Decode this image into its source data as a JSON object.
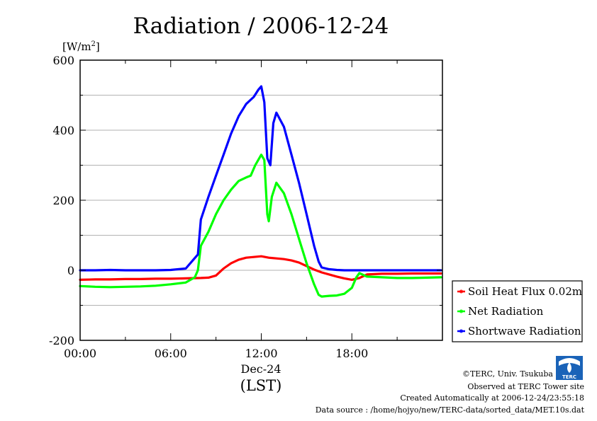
{
  "chart_data": {
    "type": "line",
    "title": "Radiation / 2006-12-24",
    "ylabel_unit": "[W/m",
    "ylabel_sup": "2",
    "ylabel_close": "]",
    "ylim": [
      -200,
      600
    ],
    "yticks": [
      -200,
      0,
      200,
      400,
      600
    ],
    "ytick_labels": [
      "-200",
      "0",
      "200",
      "400",
      "600"
    ],
    "xlim_hours": [
      0,
      24
    ],
    "xticks_hours": [
      0,
      6,
      12,
      18
    ],
    "xtick_labels": [
      "00:00",
      "06:00",
      "12:00",
      "18:00"
    ],
    "xdate_label": "Dec-24",
    "xlabel": "(LST)",
    "grid": "horizontal",
    "legend_position": "right",
    "series": [
      {
        "name": "Soil Heat Flux 0.02m",
        "color": "#ff0000",
        "x": [
          0,
          1,
          2,
          3,
          4,
          5,
          6,
          7,
          8,
          8.5,
          9,
          9.5,
          10,
          10.5,
          11,
          11.5,
          12,
          12.5,
          13,
          13.5,
          14,
          14.5,
          15,
          15.5,
          16,
          16.5,
          17,
          17.5,
          18,
          18.5,
          19,
          20,
          21,
          22,
          23,
          23.9
        ],
        "y": [
          -27,
          -26,
          -26,
          -25,
          -25,
          -24,
          -24,
          -23,
          -22,
          -21,
          -15,
          5,
          20,
          30,
          36,
          38,
          40,
          36,
          34,
          32,
          28,
          22,
          12,
          2,
          -6,
          -12,
          -18,
          -23,
          -27,
          -22,
          -12,
          -10,
          -10,
          -9,
          -9,
          -9
        ]
      },
      {
        "name": "Net Radiation",
        "color": "#00ff00",
        "x": [
          0,
          1,
          2,
          3,
          4,
          5,
          6,
          7,
          7.6,
          7.8,
          8,
          8.5,
          9,
          9.5,
          10,
          10.5,
          11,
          11.3,
          11.6,
          12,
          12.2,
          12.4,
          12.5,
          12.7,
          13,
          13.5,
          14,
          14.5,
          15,
          15.5,
          15.8,
          16,
          16.5,
          17,
          17.5,
          18,
          18.3,
          18.5,
          19,
          20,
          21,
          22,
          23,
          23.9
        ],
        "y": [
          -45,
          -47,
          -48,
          -47,
          -46,
          -44,
          -40,
          -35,
          -20,
          0,
          70,
          110,
          160,
          200,
          230,
          255,
          265,
          270,
          300,
          330,
          315,
          160,
          140,
          210,
          250,
          220,
          160,
          90,
          20,
          -40,
          -70,
          -75,
          -73,
          -72,
          -67,
          -50,
          -20,
          -8,
          -18,
          -20,
          -22,
          -22,
          -21,
          -20
        ]
      },
      {
        "name": "Shortwave Radiation",
        "color": "#0000ff",
        "x": [
          0,
          1,
          2,
          3,
          4,
          5,
          6,
          7,
          7.5,
          7.8,
          8,
          8.5,
          9,
          9.5,
          10,
          10.5,
          11,
          11.5,
          11.8,
          12,
          12.2,
          12.4,
          12.6,
          12.8,
          13,
          13.5,
          14,
          14.5,
          15,
          15.5,
          15.8,
          16,
          16.5,
          17,
          17.5,
          18,
          19,
          20,
          21,
          22,
          23,
          23.9
        ],
        "y": [
          0,
          0,
          1,
          0,
          0,
          0,
          1,
          5,
          30,
          45,
          145,
          210,
          270,
          330,
          390,
          440,
          475,
          495,
          515,
          525,
          480,
          320,
          300,
          420,
          450,
          410,
          330,
          250,
          160,
          70,
          25,
          8,
          3,
          1,
          0,
          0,
          0,
          0,
          0,
          0,
          0,
          0
        ]
      }
    ]
  },
  "credits": {
    "copyright": "©TERC, Univ. Tsukuba",
    "observed": "Observed at TERC Tower site",
    "created": "Created Automatically at 2006-12-24/23:55:18",
    "source": "Data source : /home/hojyo/new/TERC-data/sorted_data/MET.10s.dat",
    "logo_text": "TERC"
  }
}
